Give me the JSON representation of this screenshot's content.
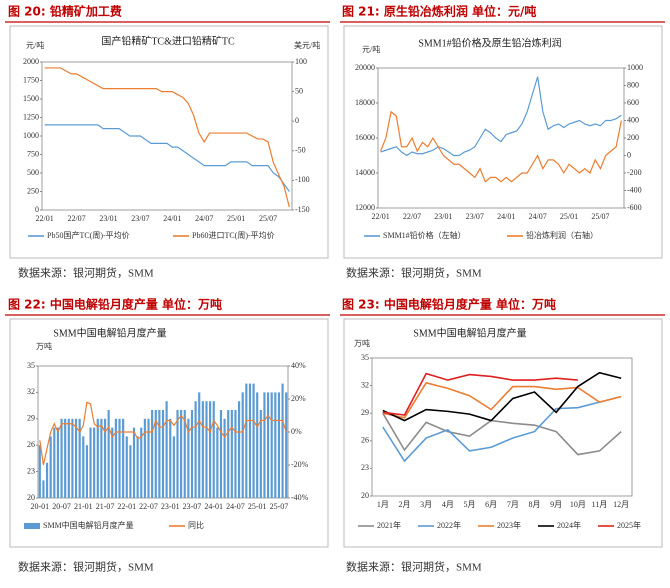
{
  "figures": [
    {
      "heading": "图 20:   铅精矿加工费",
      "source": "数据来源：银河期货，SMM"
    },
    {
      "heading": "图 21:   原生铅冶炼利润    单位：元/吨",
      "source": "数据来源：银河期货，SMM"
    },
    {
      "heading": "图 22:   中国电解铅月度产量   单位：万吨",
      "source": "数据来源：银河期货，SMM"
    },
    {
      "heading": "图 23:   中国电解铅月度产量   单位：万吨",
      "source": "数据来源：银河期货，SMM"
    }
  ],
  "chart_data": [
    {
      "type": "line",
      "title": "国产铅精矿TC&进口铅精矿TC",
      "ylabel": "元/吨",
      "y2label": "美元/吨",
      "categories": [
        "22/01",
        null,
        null,
        null,
        null,
        null,
        "22/07",
        null,
        null,
        null,
        null,
        null,
        "23/01",
        null,
        null,
        null,
        null,
        null,
        "23/07",
        null,
        null,
        null,
        null,
        null,
        "24/01",
        null,
        null,
        null,
        null,
        null,
        "24/07",
        null,
        null,
        null,
        null,
        null,
        "25/01",
        null,
        null,
        null,
        null,
        null,
        "25/07",
        null,
        null,
        null,
        null
      ],
      "ylim": [
        0,
        2000
      ],
      "yticks": [
        0,
        250,
        500,
        750,
        1000,
        1250,
        1500,
        1750,
        2000
      ],
      "y2lim": [
        -150,
        100
      ],
      "y2ticks": [
        -150,
        -100,
        -50,
        0,
        50,
        100
      ],
      "grid": false,
      "series": [
        {
          "name": "Pb50国产TC(周)-平均价",
          "color": "#5b9bd5",
          "values": [
            1150,
            1150,
            1150,
            1150,
            1150,
            1150,
            1150,
            1150,
            1150,
            1150,
            1150,
            1100,
            1100,
            1100,
            1100,
            1050,
            1000,
            1000,
            1000,
            950,
            900,
            900,
            900,
            900,
            850,
            850,
            800,
            750,
            700,
            650,
            600,
            600,
            600,
            600,
            600,
            650,
            650,
            650,
            650,
            600,
            600,
            600,
            600,
            500,
            450,
            350,
            250
          ]
        },
        {
          "name": "Pb60进口TC(周)-平均价",
          "color": "#ed7d31",
          "axis": "y2",
          "values": [
            90,
            90,
            90,
            90,
            85,
            80,
            80,
            75,
            70,
            65,
            60,
            55,
            55,
            55,
            55,
            55,
            55,
            55,
            55,
            55,
            55,
            55,
            50,
            50,
            50,
            45,
            40,
            30,
            10,
            -20,
            -35,
            -20,
            -20,
            -20,
            -20,
            -20,
            -20,
            -20,
            -20,
            -25,
            -30,
            -30,
            -35,
            -70,
            -90,
            -110,
            -145
          ]
        }
      ]
    },
    {
      "type": "line",
      "title": "SMM1#铅价格及原生铅冶炼利润",
      "ylabel": "元/吨",
      "categories": [
        "22/01",
        null,
        null,
        null,
        null,
        null,
        "22/07",
        null,
        null,
        null,
        null,
        null,
        "23/01",
        null,
        null,
        null,
        null,
        null,
        "23/07",
        null,
        null,
        null,
        null,
        null,
        "24/01",
        null,
        null,
        null,
        null,
        null,
        "24/07",
        null,
        null,
        null,
        null,
        null,
        "25/01",
        null,
        null,
        null,
        null,
        null,
        "25/07",
        null,
        null,
        null,
        null
      ],
      "ylim": [
        12000,
        20000
      ],
      "yticks": [
        12000,
        14000,
        16000,
        18000,
        20000
      ],
      "y2lim": [
        -600,
        1000
      ],
      "y2ticks": [
        -600,
        -400,
        -200,
        0,
        200,
        400,
        600,
        800,
        1000
      ],
      "grid": false,
      "series": [
        {
          "name": "SMM1#铅价格（左轴）",
          "color": "#5b9bd5",
          "values": [
            15200,
            15300,
            15400,
            15500,
            15200,
            15000,
            15200,
            15100,
            15100,
            15200,
            15300,
            15500,
            15400,
            15200,
            15000,
            15000,
            15200,
            15300,
            15500,
            16000,
            16500,
            16300,
            16000,
            15800,
            16200,
            16300,
            16400,
            16800,
            17500,
            18500,
            19500,
            17500,
            16500,
            16700,
            16800,
            16600,
            16800,
            16900,
            17000,
            16800,
            16700,
            16800,
            16700,
            17000,
            17000,
            17100,
            17300
          ]
        },
        {
          "name": "铅冶炼利润（右轴）",
          "color": "#ed7d31",
          "axis": "y2",
          "values": [
            50,
            200,
            500,
            450,
            100,
            100,
            200,
            50,
            150,
            100,
            200,
            100,
            0,
            -50,
            -100,
            -100,
            -150,
            -200,
            -250,
            -150,
            -300,
            -250,
            -250,
            -300,
            -250,
            -300,
            -250,
            -200,
            -200,
            -100,
            0,
            -150,
            -50,
            -50,
            -100,
            -200,
            -100,
            -150,
            -200,
            -150,
            -200,
            -50,
            -150,
            0,
            50,
            100,
            400
          ]
        }
      ]
    },
    {
      "type": "combo",
      "title": "SMM中国电解铅月度产量",
      "ylabel": "万吨",
      "categories": [
        "20-01",
        null,
        null,
        null,
        null,
        null,
        "20-07",
        null,
        null,
        null,
        null,
        null,
        "21-01",
        null,
        null,
        null,
        null,
        null,
        "21-07",
        null,
        null,
        null,
        null,
        null,
        "22-01",
        null,
        null,
        null,
        null,
        null,
        "22-07",
        null,
        null,
        null,
        null,
        null,
        "23-01",
        null,
        null,
        null,
        null,
        null,
        "23-07",
        null,
        null,
        null,
        null,
        null,
        "24-01",
        null,
        null,
        null,
        null,
        null,
        "24-07",
        null,
        null,
        null,
        null,
        null,
        "25-01",
        null,
        null,
        null,
        null,
        null,
        "25-07",
        null,
        null
      ],
      "ylim": [
        20,
        35
      ],
      "yticks": [
        20,
        23,
        26,
        29,
        32,
        35
      ],
      "y2lim": [
        -40,
        40
      ],
      "y2ticks": [
        {
          "value": -40,
          "label": "-40%"
        },
        {
          "value": -20,
          "label": "-20%"
        },
        {
          "value": 0,
          "label": "0%"
        },
        {
          "value": 20,
          "label": "20%"
        },
        {
          "value": 40,
          "label": "40%"
        }
      ],
      "grid": false,
      "series": [
        {
          "name": "SMM中国电解铅月度产量",
          "color": "#5b9bd5",
          "mark": "bar",
          "values": [
            26,
            22,
            24,
            27,
            28,
            28,
            29,
            29,
            29,
            29,
            29,
            29,
            27,
            26,
            28,
            28,
            29,
            29,
            29,
            30,
            28,
            29,
            29,
            29,
            27,
            26,
            28,
            27,
            28,
            29,
            29,
            30,
            30,
            30,
            30,
            31,
            29,
            27,
            30,
            30,
            30,
            29,
            30,
            31,
            32,
            31,
            31,
            31,
            31,
            28,
            30,
            29,
            30,
            30,
            30,
            31,
            32,
            33,
            33,
            33,
            32,
            30,
            32,
            32,
            32,
            32,
            32,
            33,
            32
          ]
        },
        {
          "name": "同比",
          "color": "#ed7d31",
          "axis": "y2",
          "mark": "line",
          "values": [
            -5,
            -20,
            -10,
            0,
            5,
            0,
            5,
            5,
            5,
            5,
            3,
            0,
            4,
            18,
            17,
            5,
            3,
            4,
            0,
            3,
            -3,
            0,
            0,
            0,
            0,
            0,
            0,
            -4,
            -3,
            0,
            0,
            0,
            7,
            3,
            3,
            7,
            7,
            4,
            7,
            10,
            7,
            0,
            3,
            3,
            7,
            3,
            3,
            0,
            7,
            4,
            0,
            -3,
            0,
            3,
            0,
            0,
            0,
            7,
            7,
            7,
            3,
            7,
            7,
            10,
            7,
            7,
            7,
            7,
            0
          ]
        }
      ]
    },
    {
      "type": "line",
      "title": "SMM中国电解铅月度产量",
      "ylabel": "万吨",
      "categories": [
        "1月",
        "2月",
        "3月",
        "4月",
        "5月",
        "6月",
        "7月",
        "8月",
        "9月",
        "10月",
        "11月",
        "12月"
      ],
      "ylim": [
        20,
        35
      ],
      "yticks": [
        20,
        23,
        26,
        29,
        32,
        35
      ],
      "grid": false,
      "series": [
        {
          "name": "2021年",
          "color": "#8c8c8c",
          "values": [
            29,
            25,
            28,
            27,
            26.5,
            28.2,
            27.9,
            27.7,
            27,
            24.5,
            24.9,
            27
          ]
        },
        {
          "name": "2022年",
          "color": "#5b9bd5",
          "values": [
            27.5,
            23.8,
            26.3,
            27.2,
            24.9,
            25.3,
            26.3,
            27,
            29.5,
            29.6,
            30.2,
            30.8
          ]
        },
        {
          "name": "2023年",
          "color": "#ed7d31",
          "values": [
            29,
            28.5,
            32.3,
            31.7,
            30.9,
            29.4,
            31.9,
            31.9,
            31.6,
            31.8,
            30.2,
            30.8
          ]
        },
        {
          "name": "2024年",
          "color": "#000000",
          "values": [
            29.3,
            28.2,
            29.4,
            29.2,
            28.9,
            28.2,
            30.6,
            31.3,
            29.1,
            31.9,
            33.4,
            32.8
          ]
        },
        {
          "name": "2025年",
          "color": "#e02020",
          "values": [
            29.1,
            28.8,
            33.3,
            32.6,
            33.2,
            33,
            32.6,
            32.6,
            32.8,
            32.6,
            null,
            null
          ]
        }
      ]
    }
  ]
}
